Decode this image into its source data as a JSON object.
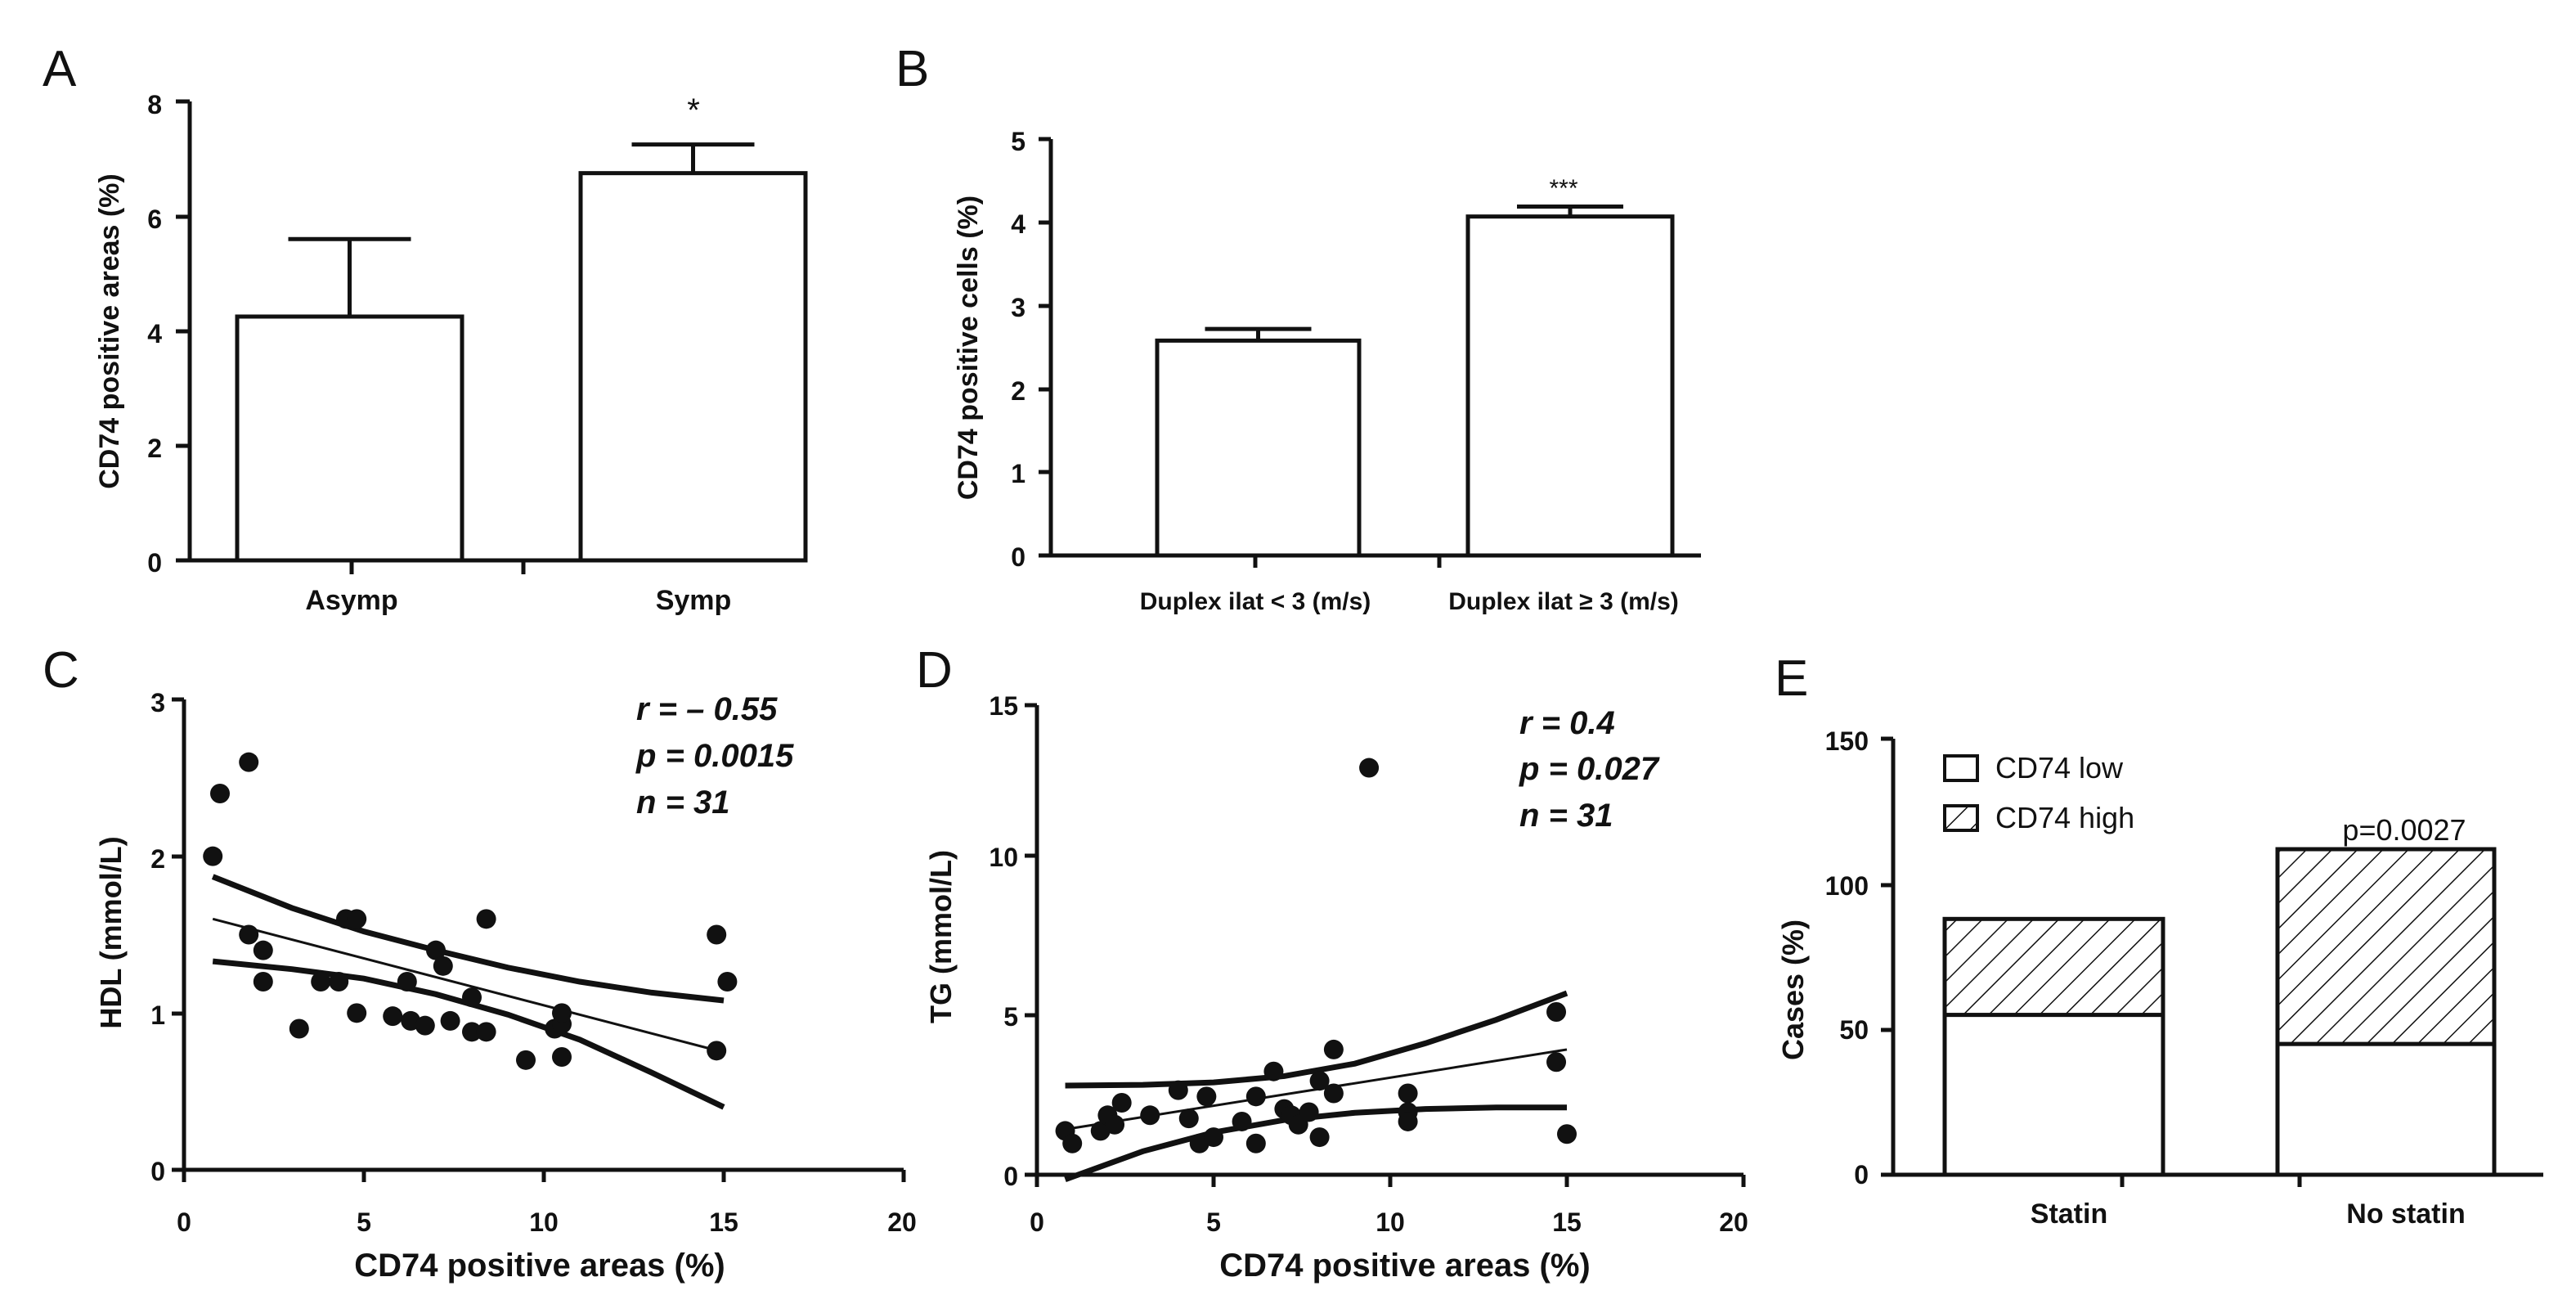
{
  "chart_data": [
    {
      "panel": "A",
      "type": "bar",
      "ylabel": "CD74 positive areas (%)",
      "ylim": [
        0,
        8
      ],
      "yticks": [
        "0",
        "2",
        "4",
        "6",
        "8"
      ],
      "categories": [
        "Asymp",
        "Symp"
      ],
      "values": [
        4.25,
        6.75
      ],
      "errors": [
        1.35,
        0.5
      ],
      "annotation": "*"
    },
    {
      "panel": "B",
      "type": "bar",
      "ylabel": "CD74 positive cells (%)",
      "ylim": [
        0,
        5
      ],
      "yticks": [
        "0",
        "1",
        "2",
        "3",
        "4",
        "5"
      ],
      "categories": [
        "Duplex ilat < 3 (m/s)",
        "Duplex ilat ≥ 3 (m/s)"
      ],
      "values": [
        2.58,
        4.07
      ],
      "errors": [
        0.14,
        0.12
      ],
      "annotation": "***"
    },
    {
      "panel": "C",
      "type": "scatter",
      "xlabel": "CD74 positive areas (%)",
      "ylabel": "HDL  (mmol/L)",
      "xlim": [
        0,
        20
      ],
      "ylim": [
        0,
        3
      ],
      "xticks": [
        "0",
        "5",
        "10",
        "15",
        "20"
      ],
      "yticks": [
        "0",
        "1",
        "2",
        "3"
      ],
      "stats": [
        "r = – 0.55",
        "p = 0.0015",
        "n = 31"
      ],
      "points": [
        [
          0.8,
          2.0
        ],
        [
          1.0,
          2.4
        ],
        [
          1.8,
          2.6
        ],
        [
          1.8,
          1.5
        ],
        [
          2.2,
          1.4
        ],
        [
          2.2,
          1.2
        ],
        [
          3.2,
          0.9
        ],
        [
          3.8,
          1.2
        ],
        [
          4.3,
          1.2
        ],
        [
          4.5,
          1.6
        ],
        [
          4.8,
          1.6
        ],
        [
          4.8,
          1.0
        ],
        [
          5.8,
          0.98
        ],
        [
          6.2,
          1.2
        ],
        [
          6.3,
          0.95
        ],
        [
          6.7,
          0.92
        ],
        [
          7.0,
          1.4
        ],
        [
          7.2,
          1.3
        ],
        [
          7.4,
          0.95
        ],
        [
          8.0,
          1.1
        ],
        [
          8.0,
          0.88
        ],
        [
          8.4,
          1.6
        ],
        [
          8.4,
          0.88
        ],
        [
          9.5,
          0.7
        ],
        [
          10.3,
          0.9
        ],
        [
          10.5,
          0.93
        ],
        [
          10.5,
          1.0
        ],
        [
          10.5,
          0.72
        ],
        [
          14.8,
          1.5
        ],
        [
          14.8,
          0.76
        ],
        [
          15.1,
          1.2
        ]
      ],
      "fit": {
        "x": [
          0.8,
          15
        ],
        "y": [
          1.6,
          0.75
        ]
      },
      "ci_upper": {
        "x": [
          0.8,
          3,
          5,
          7,
          9,
          11,
          13,
          15
        ],
        "y": [
          1.87,
          1.67,
          1.52,
          1.4,
          1.29,
          1.2,
          1.13,
          1.08
        ]
      },
      "ci_lower": {
        "x": [
          0.8,
          3,
          5,
          7,
          9,
          11,
          13,
          15
        ],
        "y": [
          1.33,
          1.28,
          1.22,
          1.12,
          0.99,
          0.83,
          0.62,
          0.4
        ]
      }
    },
    {
      "panel": "D",
      "type": "scatter",
      "xlabel": "CD74 positive areas (%)",
      "ylabel": "TG  (mmol/L)",
      "xlim": [
        0,
        20
      ],
      "ylim": [
        0,
        15
      ],
      "xticks": [
        "0",
        "5",
        "10",
        "15",
        "20"
      ],
      "yticks": [
        "0",
        "5",
        "10",
        "15"
      ],
      "stats": [
        "r = 0.4",
        "p = 0.027",
        "n = 31"
      ],
      "points": [
        [
          0.8,
          1.4
        ],
        [
          1.0,
          1.0
        ],
        [
          1.8,
          1.4
        ],
        [
          2.0,
          1.9
        ],
        [
          2.2,
          1.6
        ],
        [
          2.4,
          2.3
        ],
        [
          3.2,
          1.9
        ],
        [
          4.0,
          2.7
        ],
        [
          4.3,
          1.8
        ],
        [
          4.6,
          1.0
        ],
        [
          4.8,
          2.5
        ],
        [
          5.0,
          1.2
        ],
        [
          5.8,
          1.7
        ],
        [
          6.2,
          2.5
        ],
        [
          6.2,
          1.0
        ],
        [
          6.7,
          3.3
        ],
        [
          7.0,
          2.1
        ],
        [
          7.2,
          1.9
        ],
        [
          7.4,
          1.6
        ],
        [
          7.7,
          2.0
        ],
        [
          8.0,
          1.2
        ],
        [
          8.0,
          3.0
        ],
        [
          8.4,
          2.6
        ],
        [
          8.4,
          4.0
        ],
        [
          9.4,
          13.0
        ],
        [
          10.5,
          2.6
        ],
        [
          10.5,
          2.0
        ],
        [
          10.5,
          1.7
        ],
        [
          14.7,
          5.2
        ],
        [
          14.7,
          3.6
        ],
        [
          15.0,
          1.3
        ]
      ],
      "fit": {
        "x": [
          0.8,
          15
        ],
        "y": [
          1.45,
          4.0
        ]
      },
      "ci_upper": {
        "x": [
          0.8,
          3,
          5,
          7,
          9,
          11,
          13,
          15
        ],
        "y": [
          2.85,
          2.87,
          2.95,
          3.15,
          3.55,
          4.2,
          4.95,
          5.8
        ]
      },
      "ci_lower": {
        "x": [
          0.8,
          3,
          5,
          7,
          9,
          11,
          13,
          15
        ],
        "y": [
          -0.15,
          0.75,
          1.35,
          1.75,
          1.98,
          2.1,
          2.15,
          2.15
        ]
      }
    },
    {
      "panel": "E",
      "type": "bar",
      "stacked": true,
      "ylabel": "Cases (%)",
      "ylim": [
        0,
        150
      ],
      "yticks": [
        "0",
        "50",
        "100",
        "150"
      ],
      "categories": [
        "Statin",
        "No statin"
      ],
      "series": [
        {
          "name": "CD74 low",
          "values": [
            55,
            45
          ]
        },
        {
          "name": "CD74 high",
          "values": [
            33,
            67
          ]
        }
      ],
      "annotation": "p=0.0027",
      "legend": "top-left"
    }
  ]
}
